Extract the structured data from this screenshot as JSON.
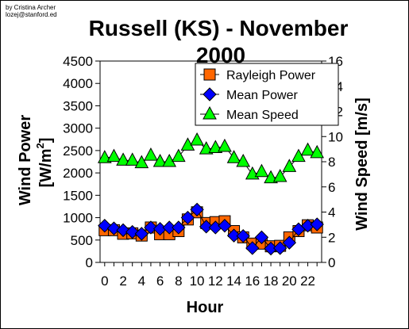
{
  "credit": {
    "line1": "by Cristina Archer",
    "line2": "lozej@stanford.ed"
  },
  "chart_data": {
    "type": "line",
    "title_line1": "Russell (KS) - November",
    "title_line2": "2000",
    "xlabel": "Hour",
    "ylabel_left": "Wind Power [W/m²]",
    "ylabel_left_main": "Wind Power",
    "ylabel_left_unit_prefix": "[W/m",
    "ylabel_left_unit_sup": "2",
    "ylabel_left_unit_suffix": "]",
    "ylabel_right": "Wind Speed [m/s]",
    "ylim_left": [
      0,
      4500
    ],
    "yticks_left": [
      "0",
      "500",
      "1000",
      "1500",
      "2000",
      "2500",
      "3000",
      "3500",
      "4000",
      "4500"
    ],
    "ylim_right": [
      0,
      16
    ],
    "yticks_right": [
      "0",
      "2",
      "4",
      "6",
      "8",
      "10",
      "12",
      "14",
      "16"
    ],
    "xlim": [
      -0.5,
      23.5
    ],
    "xticks": [
      "0",
      "2",
      "4",
      "6",
      "8",
      "10",
      "12",
      "14",
      "16",
      "18",
      "20",
      "22"
    ],
    "x": [
      0,
      1,
      2,
      3,
      4,
      5,
      6,
      7,
      8,
      9,
      10,
      11,
      12,
      13,
      14,
      15,
      16,
      17,
      18,
      19,
      20,
      21,
      22,
      23
    ],
    "series": [
      {
        "name": "Rayleigh Power",
        "axis": "left",
        "marker": "square",
        "color": "#FF6600",
        "values": [
          720,
          720,
          640,
          650,
          600,
          780,
          630,
          630,
          700,
          960,
          1120,
          880,
          900,
          920,
          700,
          560,
          420,
          420,
          360,
          370,
          560,
          700,
          830,
          780
        ]
      },
      {
        "name": "Mean Power",
        "axis": "left",
        "marker": "diamond",
        "color": "#0000FF",
        "values": [
          820,
          760,
          720,
          680,
          640,
          780,
          750,
          780,
          780,
          1000,
          1180,
          800,
          780,
          820,
          600,
          590,
          320,
          560,
          310,
          320,
          440,
          740,
          820,
          850
        ]
      },
      {
        "name": "Mean Speed",
        "axis": "right",
        "marker": "triangle",
        "color": "#00FF00",
        "values": [
          8.3,
          8.4,
          8.1,
          8.1,
          7.9,
          8.5,
          8.0,
          8.0,
          8.4,
          9.3,
          9.7,
          9.0,
          9.1,
          9.2,
          8.3,
          8.0,
          7.0,
          7.2,
          6.7,
          6.8,
          7.6,
          8.4,
          8.9,
          8.7
        ]
      }
    ],
    "legend_position": "top-right",
    "grid": false
  }
}
